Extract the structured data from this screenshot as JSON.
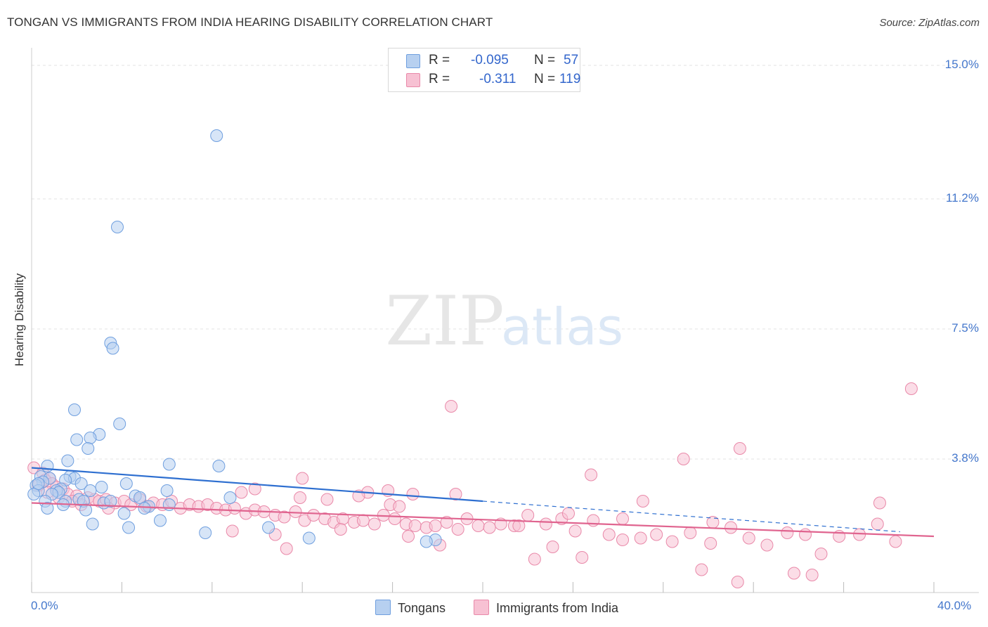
{
  "title": "TONGAN VS IMMIGRANTS FROM INDIA HEARING DISABILITY CORRELATION CHART",
  "source": "Source: ZipAtlas.com",
  "watermark": {
    "zip": "ZIP",
    "atlas": "atlas"
  },
  "legend": {
    "rows": [
      {
        "r_label": "R =",
        "r_value": "-0.095",
        "n_label": "N =",
        "n_value": "57"
      },
      {
        "r_label": "R =",
        "r_value": "-0.311",
        "n_label": "N =",
        "n_value": "119"
      }
    ]
  },
  "bottom_legend": {
    "tongans": "Tongans",
    "india": "Immigrants from India"
  },
  "colors": {
    "blue": "#6f9fdf",
    "blue_fill": "#b7d0f0",
    "blue_line": "#2e6fd0",
    "pink": "#e989a9",
    "pink_fill": "#f7c1d3",
    "pink_line": "#e0648f",
    "tick_text": "#4477cc"
  },
  "chart_data": {
    "type": "scatter",
    "title": "TONGAN VS IMMIGRANTS FROM INDIA HEARING DISABILITY CORRELATION CHART",
    "xlabel": "",
    "ylabel": "Hearing Disability",
    "xlim": [
      0,
      40
    ],
    "ylim": [
      0,
      15.5
    ],
    "x_tick_labels": [
      "0.0%",
      "40.0%"
    ],
    "y_ticks": [
      {
        "value": 3.8,
        "label": "3.8%"
      },
      {
        "value": 7.5,
        "label": "7.5%"
      },
      {
        "value": 11.2,
        "label": "11.2%"
      },
      {
        "value": 15.0,
        "label": "15.0%"
      }
    ],
    "grid": true,
    "series": [
      {
        "name": "Tongans",
        "r": -0.095,
        "n": 57,
        "trend": {
          "x0": 0,
          "y0": 3.55,
          "x1": 20,
          "y1": 2.6,
          "dashed_to_x": 38.5,
          "dashed_to_y": 1.73
        },
        "points": [
          [
            8.2,
            13.0
          ],
          [
            3.8,
            10.4
          ],
          [
            3.5,
            7.1
          ],
          [
            3.6,
            6.95
          ],
          [
            1.9,
            5.2
          ],
          [
            3.9,
            4.8
          ],
          [
            3.0,
            4.5
          ],
          [
            2.6,
            4.4
          ],
          [
            2.0,
            4.35
          ],
          [
            2.5,
            4.1
          ],
          [
            1.6,
            3.75
          ],
          [
            6.1,
            3.65
          ],
          [
            8.3,
            3.6
          ],
          [
            0.7,
            3.6
          ],
          [
            0.4,
            3.3
          ],
          [
            0.8,
            3.25
          ],
          [
            1.7,
            3.3
          ],
          [
            1.9,
            3.25
          ],
          [
            1.5,
            3.2
          ],
          [
            0.5,
            3.15
          ],
          [
            2.2,
            3.1
          ],
          [
            3.1,
            3.0
          ],
          [
            0.2,
            3.05
          ],
          [
            1.3,
            2.95
          ],
          [
            0.3,
            2.9
          ],
          [
            1.1,
            2.9
          ],
          [
            2.6,
            2.9
          ],
          [
            1.2,
            2.85
          ],
          [
            0.9,
            2.8
          ],
          [
            4.2,
            3.1
          ],
          [
            6.0,
            2.9
          ],
          [
            4.6,
            2.75
          ],
          [
            4.8,
            2.7
          ],
          [
            2.1,
            2.65
          ],
          [
            0.6,
            2.6
          ],
          [
            1.5,
            2.6
          ],
          [
            2.3,
            2.6
          ],
          [
            3.2,
            2.55
          ],
          [
            3.5,
            2.6
          ],
          [
            1.4,
            2.5
          ],
          [
            5.2,
            2.45
          ],
          [
            6.1,
            2.5
          ],
          [
            8.8,
            2.7
          ],
          [
            0.7,
            2.4
          ],
          [
            2.4,
            2.35
          ],
          [
            4.1,
            2.25
          ],
          [
            5.0,
            2.4
          ],
          [
            5.7,
            2.05
          ],
          [
            2.7,
            1.95
          ],
          [
            4.3,
            1.85
          ],
          [
            7.7,
            1.7
          ],
          [
            10.5,
            1.85
          ],
          [
            12.3,
            1.55
          ],
          [
            17.9,
            1.5
          ],
          [
            17.5,
            1.45
          ],
          [
            0.1,
            2.8
          ],
          [
            0.3,
            3.1
          ]
        ]
      },
      {
        "name": "Immigrants from India",
        "r": -0.311,
        "n": 119,
        "trend": {
          "x0": 0,
          "y0": 2.55,
          "x1": 40,
          "y1": 1.6
        },
        "points": [
          [
            0.1,
            3.55
          ],
          [
            0.5,
            3.4
          ],
          [
            0.8,
            3.25
          ],
          [
            0.6,
            3.2
          ],
          [
            0.9,
            3.1
          ],
          [
            0.3,
            3.05
          ],
          [
            1.1,
            3.0
          ],
          [
            1.4,
            2.95
          ],
          [
            0.7,
            2.85
          ],
          [
            1.6,
            2.8
          ],
          [
            2.0,
            2.75
          ],
          [
            1.2,
            2.7
          ],
          [
            2.5,
            2.7
          ],
          [
            2.8,
            2.65
          ],
          [
            1.8,
            2.6
          ],
          [
            3.0,
            2.6
          ],
          [
            3.3,
            2.65
          ],
          [
            3.7,
            2.55
          ],
          [
            2.2,
            2.5
          ],
          [
            4.1,
            2.6
          ],
          [
            4.4,
            2.5
          ],
          [
            4.8,
            2.65
          ],
          [
            5.1,
            2.45
          ],
          [
            5.4,
            2.55
          ],
          [
            5.8,
            2.5
          ],
          [
            6.2,
            2.6
          ],
          [
            6.6,
            2.4
          ],
          [
            7.0,
            2.5
          ],
          [
            7.4,
            2.45
          ],
          [
            7.8,
            2.5
          ],
          [
            8.2,
            2.4
          ],
          [
            8.6,
            2.35
          ],
          [
            9.0,
            2.4
          ],
          [
            9.5,
            2.25
          ],
          [
            9.9,
            2.35
          ],
          [
            10.3,
            2.3
          ],
          [
            10.8,
            2.2
          ],
          [
            11.2,
            2.15
          ],
          [
            11.7,
            2.3
          ],
          [
            12.1,
            2.05
          ],
          [
            12.5,
            2.2
          ],
          [
            13.0,
            2.1
          ],
          [
            13.4,
            2.0
          ],
          [
            13.8,
            2.1
          ],
          [
            14.3,
            2.0
          ],
          [
            14.7,
            2.05
          ],
          [
            15.2,
            1.95
          ],
          [
            15.6,
            2.2
          ],
          [
            16.1,
            2.1
          ],
          [
            16.6,
            1.95
          ],
          [
            17.0,
            1.9
          ],
          [
            17.5,
            1.85
          ],
          [
            17.9,
            1.9
          ],
          [
            18.4,
            2.0
          ],
          [
            18.9,
            1.8
          ],
          [
            19.3,
            2.1
          ],
          [
            19.8,
            1.9
          ],
          [
            20.3,
            1.85
          ],
          [
            20.8,
            1.95
          ],
          [
            21.4,
            1.9
          ],
          [
            22.0,
            2.2
          ],
          [
            22.8,
            1.95
          ],
          [
            23.5,
            2.1
          ],
          [
            24.1,
            1.75
          ],
          [
            24.9,
            2.05
          ],
          [
            25.6,
            1.65
          ],
          [
            26.2,
            1.5
          ],
          [
            27.0,
            1.55
          ],
          [
            27.7,
            1.65
          ],
          [
            28.4,
            1.45
          ],
          [
            29.2,
            1.7
          ],
          [
            30.1,
            1.4
          ],
          [
            31.0,
            1.85
          ],
          [
            31.8,
            1.55
          ],
          [
            32.6,
            1.35
          ],
          [
            33.5,
            1.7
          ],
          [
            34.3,
            1.65
          ],
          [
            35.0,
            1.1
          ],
          [
            35.8,
            1.6
          ],
          [
            36.7,
            1.65
          ],
          [
            37.5,
            1.95
          ],
          [
            38.3,
            1.45
          ],
          [
            39.0,
            5.8
          ],
          [
            37.6,
            2.55
          ],
          [
            31.4,
            4.1
          ],
          [
            28.9,
            3.8
          ],
          [
            24.8,
            3.35
          ],
          [
            27.1,
            2.6
          ],
          [
            18.6,
            5.3
          ],
          [
            12.0,
            3.25
          ],
          [
            9.9,
            2.95
          ],
          [
            9.3,
            2.85
          ],
          [
            14.9,
            2.85
          ],
          [
            15.8,
            2.9
          ],
          [
            16.9,
            2.8
          ],
          [
            18.8,
            2.8
          ],
          [
            11.9,
            2.7
          ],
          [
            13.1,
            2.65
          ],
          [
            14.5,
            2.75
          ],
          [
            15.9,
            2.5
          ],
          [
            16.3,
            2.45
          ],
          [
            23.8,
            2.25
          ],
          [
            26.2,
            2.1
          ],
          [
            30.2,
            2.0
          ],
          [
            21.6,
            1.9
          ],
          [
            10.8,
            1.65
          ],
          [
            8.9,
            1.75
          ],
          [
            11.3,
            1.25
          ],
          [
            13.7,
            1.8
          ],
          [
            16.7,
            1.6
          ],
          [
            18.1,
            1.35
          ],
          [
            22.3,
            0.95
          ],
          [
            23.1,
            1.3
          ],
          [
            24.4,
            1.0
          ],
          [
            29.7,
            0.65
          ],
          [
            31.3,
            0.3
          ],
          [
            33.8,
            0.55
          ],
          [
            34.6,
            0.5
          ],
          [
            3.4,
            2.4
          ]
        ]
      }
    ]
  }
}
